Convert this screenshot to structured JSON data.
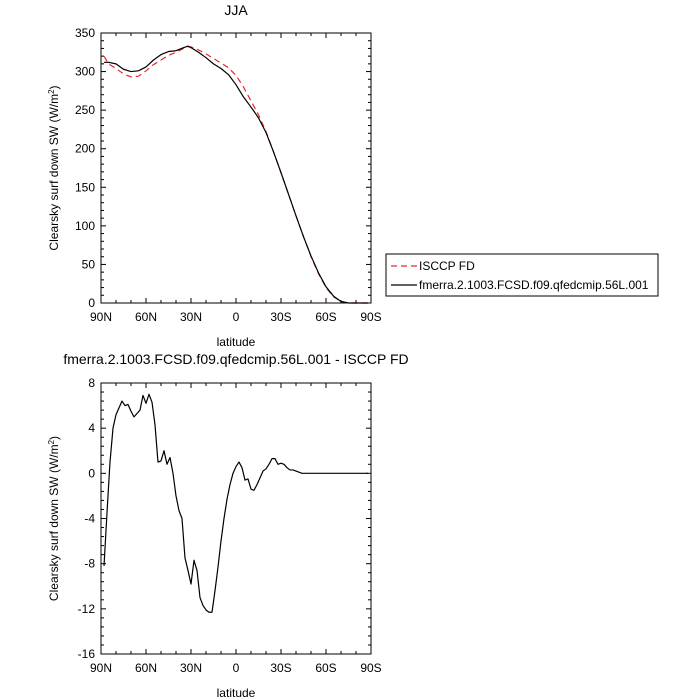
{
  "chart_data": [
    {
      "type": "line",
      "title": "JJA",
      "xlabel": "latitude",
      "ylabel_main": "Clearsky surf down SW (W/m",
      "ylabel_sup": "2",
      "ylabel_end": ")",
      "xlim": [
        90,
        -90
      ],
      "ylim": [
        0,
        350
      ],
      "xticks": [
        90,
        60,
        30,
        0,
        -30,
        -60,
        -90
      ],
      "xtick_labels": [
        "90N",
        "60N",
        "30N",
        "0",
        "30S",
        "60S",
        "90S"
      ],
      "yticks": [
        0,
        50,
        100,
        150,
        200,
        250,
        300,
        350
      ],
      "ytick_labels": [
        "0",
        "50",
        "100",
        "150",
        "200",
        "250",
        "300",
        "350"
      ],
      "grid": false,
      "legend_position": "right",
      "series": [
        {
          "name": "ISCCP FD",
          "color": "#e8292b",
          "dash": "dashed",
          "x": [
            88,
            85,
            80,
            75,
            70,
            65,
            60,
            55,
            50,
            45,
            40,
            35,
            32,
            30,
            25,
            20,
            15,
            10,
            5,
            0,
            -5,
            -10,
            -15,
            -20,
            -25,
            -30,
            -35,
            -40,
            -45,
            -50,
            -55,
            -60,
            -65,
            -70,
            -75,
            -80,
            -85,
            -88
          ],
          "y": [
            320,
            310,
            304,
            297,
            293,
            294,
            301,
            309,
            315,
            321,
            325,
            330,
            332,
            332,
            328,
            323,
            317,
            311,
            305,
            295,
            280,
            262,
            244,
            222,
            196,
            169,
            141,
            113,
            86,
            60,
            38,
            20,
            8,
            2,
            0,
            0,
            0,
            0
          ]
        },
        {
          "name": "fmerra.2.1003.FCSD.f09.qfedcmip.56L.001",
          "color": "#000000",
          "dash": "solid",
          "x": [
            88,
            85,
            80,
            75,
            70,
            65,
            60,
            55,
            50,
            45,
            40,
            35,
            32,
            30,
            25,
            20,
            15,
            10,
            5,
            0,
            -5,
            -10,
            -15,
            -20,
            -25,
            -30,
            -35,
            -40,
            -45,
            -50,
            -55,
            -60,
            -65,
            -70,
            -75,
            -80,
            -85,
            -88
          ],
          "y": [
            312,
            312,
            310,
            303,
            300,
            301,
            306,
            315,
            322,
            326,
            327,
            331,
            333,
            331,
            325,
            318,
            310,
            304,
            296,
            283,
            267,
            254,
            240,
            221,
            196,
            169,
            141,
            113,
            86,
            61,
            39,
            21,
            9,
            2,
            0,
            0,
            0,
            0
          ]
        }
      ]
    },
    {
      "type": "line",
      "title": "fmerra.2.1003.FCSD.f09.qfedcmip.56L.001 - ISCCP FD",
      "xlabel": "latitude",
      "ylabel_main": "Clearsky surf down SW (W/m",
      "ylabel_sup": "2",
      "ylabel_end": ")",
      "xlim": [
        90,
        -90
      ],
      "ylim": [
        -16,
        8
      ],
      "xticks": [
        90,
        60,
        30,
        0,
        -30,
        -60,
        -90
      ],
      "xtick_labels": [
        "90N",
        "60N",
        "30N",
        "0",
        "30S",
        "60S",
        "90S"
      ],
      "yticks": [
        -16,
        -12,
        -8,
        -4,
        0,
        4,
        8
      ],
      "ytick_labels": [
        "-16",
        "-12",
        "-8",
        "-4",
        "0",
        "4",
        "8"
      ],
      "grid": false,
      "series": [
        {
          "color": "#000000",
          "dash": "solid",
          "x": [
            88,
            86,
            84,
            82,
            80,
            78,
            76,
            74,
            72,
            70,
            68,
            66,
            64,
            62,
            60,
            58,
            56,
            54,
            52,
            50,
            48,
            46,
            44,
            42,
            40,
            38,
            36,
            34,
            32,
            30,
            28,
            26,
            24,
            22,
            20,
            18,
            16,
            14,
            12,
            10,
            8,
            6,
            4,
            2,
            0,
            -2,
            -4,
            -6,
            -8,
            -10,
            -12,
            -14,
            -16,
            -18,
            -20,
            -22,
            -24,
            -26,
            -28,
            -30,
            -32,
            -34,
            -36,
            -38,
            -40,
            -42,
            -44,
            -46,
            -48,
            -50,
            -52,
            -54,
            -56,
            -58,
            -60,
            -62,
            -64,
            -66,
            -68,
            -70,
            -72,
            -74,
            -76,
            -78,
            -80,
            -82,
            -84,
            -86,
            -88
          ],
          "y": [
            -8.2,
            -3.5,
            1.0,
            4.0,
            5.2,
            5.8,
            6.4,
            6.0,
            6.1,
            5.5,
            5.0,
            5.3,
            5.6,
            6.9,
            6.2,
            7.0,
            6.3,
            4.3,
            1.0,
            1.1,
            2.0,
            0.8,
            1.4,
            0.0,
            -2.0,
            -3.3,
            -4.0,
            -7.5,
            -8.6,
            -9.8,
            -7.7,
            -8.6,
            -11.0,
            -11.7,
            -12.1,
            -12.3,
            -12.3,
            -10.4,
            -8.3,
            -6.0,
            -4.0,
            -2.3,
            -1.0,
            0.0,
            0.6,
            1.0,
            0.5,
            -0.6,
            -0.5,
            -1.4,
            -1.5,
            -1.0,
            -0.4,
            0.2,
            0.4,
            0.8,
            1.3,
            1.3,
            0.8,
            0.9,
            0.8,
            0.5,
            0.3,
            0.3,
            0.2,
            0.1,
            0.0,
            0.0,
            0.0,
            0.0,
            0.0,
            0.0,
            0.0,
            0.0,
            0.0,
            0.0,
            0.0,
            0.0,
            0.0,
            0.0,
            0.0,
            0.0,
            0.0,
            0.0,
            0.0,
            0.0,
            0.0,
            0.0,
            0.0
          ]
        }
      ]
    }
  ]
}
